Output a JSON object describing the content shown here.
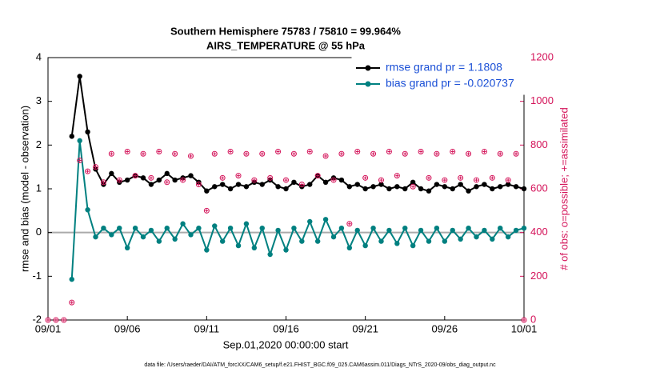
{
  "chart_data": {
    "type": "line",
    "title": "Southern Hemisphere 75783 / 75810 = 99.964%",
    "subtitle": "AIRS_TEMPERATURE @ 55 hPa",
    "x_label": "Sep.01,2020 00:00:00 start",
    "y_label": "rmse and bias (model - observation)",
    "y2_label": "# of obs: o=possible; +=assimilated",
    "footnote": "data file: /Users/raeder/DAI/ATM_forcXX/CAM6_setup/f.e21.FHIST_BGC.f09_025.CAM6assim.011/Diags_NTrS_2020-09/obs_diag_output.nc",
    "x": [
      0,
      0.5,
      1,
      1.5,
      2,
      2.5,
      3,
      3.5,
      4,
      4.5,
      5,
      5.5,
      6,
      6.5,
      7,
      7.5,
      8,
      8.5,
      9,
      9.5,
      10,
      10.5,
      11,
      11.5,
      12,
      12.5,
      13,
      13.5,
      14,
      14.5,
      15,
      15.5,
      16,
      16.5,
      17,
      17.5,
      18,
      18.5,
      19,
      19.5,
      20,
      20.5,
      21,
      21.5,
      22,
      22.5,
      23,
      23.5,
      24,
      24.5,
      25,
      25.5,
      26,
      26.5,
      27,
      27.5,
      28,
      28.5,
      29,
      29.5,
      30
    ],
    "xlim": [
      0,
      30
    ],
    "xticks": [
      {
        "value": 0,
        "label": "09/01"
      },
      {
        "value": 5,
        "label": "09/06"
      },
      {
        "value": 10,
        "label": "09/11"
      },
      {
        "value": 15,
        "label": "09/16"
      },
      {
        "value": 20,
        "label": "09/21"
      },
      {
        "value": 25,
        "label": "09/26"
      },
      {
        "value": 30,
        "label": "10/01"
      }
    ],
    "ylim": [
      -2,
      4
    ],
    "yticks": [
      -2,
      -1,
      0,
      1,
      2,
      3,
      4
    ],
    "y2lim": [
      0,
      1200
    ],
    "y2ticks": [
      0,
      200,
      400,
      600,
      800,
      1000,
      1200
    ],
    "legend": "upper right",
    "series": [
      {
        "name": "rmse grand pr = 1.1808",
        "color": "#000000",
        "values": [
          null,
          null,
          null,
          2.2,
          3.57,
          2.3,
          1.45,
          1.1,
          1.35,
          1.15,
          1.2,
          1.3,
          1.25,
          1.1,
          1.2,
          1.35,
          1.2,
          1.25,
          1.3,
          1.15,
          0.95,
          1.05,
          1.1,
          1.0,
          1.1,
          1.05,
          1.15,
          1.1,
          1.2,
          1.05,
          1.0,
          1.15,
          1.05,
          1.1,
          1.3,
          1.15,
          1.25,
          1.2,
          1.05,
          1.1,
          1.0,
          1.05,
          1.1,
          1.0,
          1.05,
          1.0,
          1.15,
          1.0,
          0.95,
          1.1,
          1.05,
          1.0,
          1.1,
          0.95,
          1.05,
          1.1,
          1.0,
          1.05,
          1.1,
          1.05,
          1.0
        ]
      },
      {
        "name": "bias grand pr = -0.020737",
        "color": "#008080",
        "values": [
          null,
          null,
          null,
          -1.07,
          2.1,
          0.52,
          -0.1,
          0.1,
          -0.05,
          0.1,
          -0.35,
          0.1,
          -0.1,
          0.05,
          -0.2,
          0.1,
          -0.15,
          0.2,
          -0.05,
          0.1,
          -0.4,
          0.15,
          -0.2,
          0.1,
          -0.3,
          0.2,
          -0.35,
          0.1,
          -0.5,
          0.05,
          -0.4,
          0.1,
          -0.2,
          0.25,
          -0.2,
          0.3,
          -0.1,
          0.1,
          -0.35,
          0.05,
          -0.3,
          0.1,
          -0.2,
          0.05,
          -0.25,
          0.1,
          -0.3,
          0.05,
          -0.2,
          0.1,
          -0.2,
          0.05,
          -0.15,
          0.1,
          -0.1,
          0.05,
          -0.15,
          0.1,
          -0.1,
          0.05,
          0.1
        ]
      },
      {
        "color": "#d4145a",
        "axis": "y2",
        "values": [
          0,
          0,
          0,
          80,
          730,
          680,
          700,
          630,
          760,
          640,
          770,
          660,
          760,
          650,
          770,
          630,
          760,
          640,
          750,
          620,
          500,
          760,
          650,
          770,
          660,
          760,
          640,
          760,
          650,
          770,
          640,
          760,
          620,
          770,
          660,
          750,
          640,
          760,
          440,
          770,
          650,
          760,
          640,
          770,
          660,
          760,
          610,
          770,
          650,
          760,
          640,
          770,
          650,
          760,
          640,
          770,
          650,
          760,
          640,
          760,
          0
        ]
      }
    ]
  }
}
